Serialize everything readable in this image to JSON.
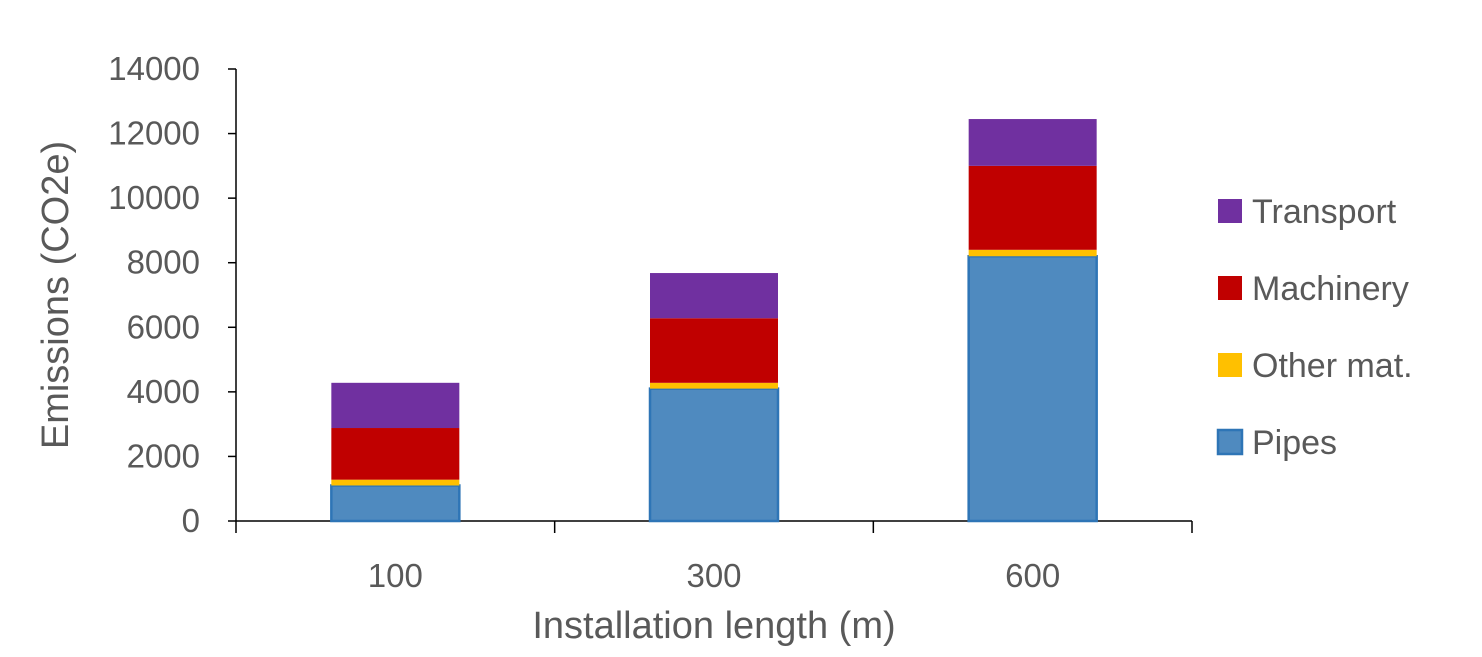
{
  "chart_data": {
    "type": "bar",
    "stacked": true,
    "categories": [
      "100",
      "300",
      "600"
    ],
    "series": [
      {
        "name": "Pipes",
        "color": "#4f8abf",
        "values": [
          1100,
          4100,
          8200
        ]
      },
      {
        "name": "Other mat.",
        "color": "#ffc000",
        "values": [
          180,
          180,
          200
        ]
      },
      {
        "name": "Machinery",
        "color": "#c00000",
        "values": [
          1600,
          2000,
          2600
        ]
      },
      {
        "name": "Transport",
        "color": "#7030a0",
        "values": [
          1400,
          1400,
          1450
        ]
      }
    ],
    "xlabel": "Installation length (m)",
    "ylabel": "Emissions (CO2e)",
    "ylim": [
      0,
      14000
    ],
    "yticks": [
      "0",
      "2000",
      "4000",
      "6000",
      "8000",
      "10000",
      "12000",
      "14000"
    ],
    "legend_order": [
      "Transport",
      "Machinery",
      "Other mat.",
      "Pipes"
    ],
    "legend_position": "right",
    "grid": false
  }
}
